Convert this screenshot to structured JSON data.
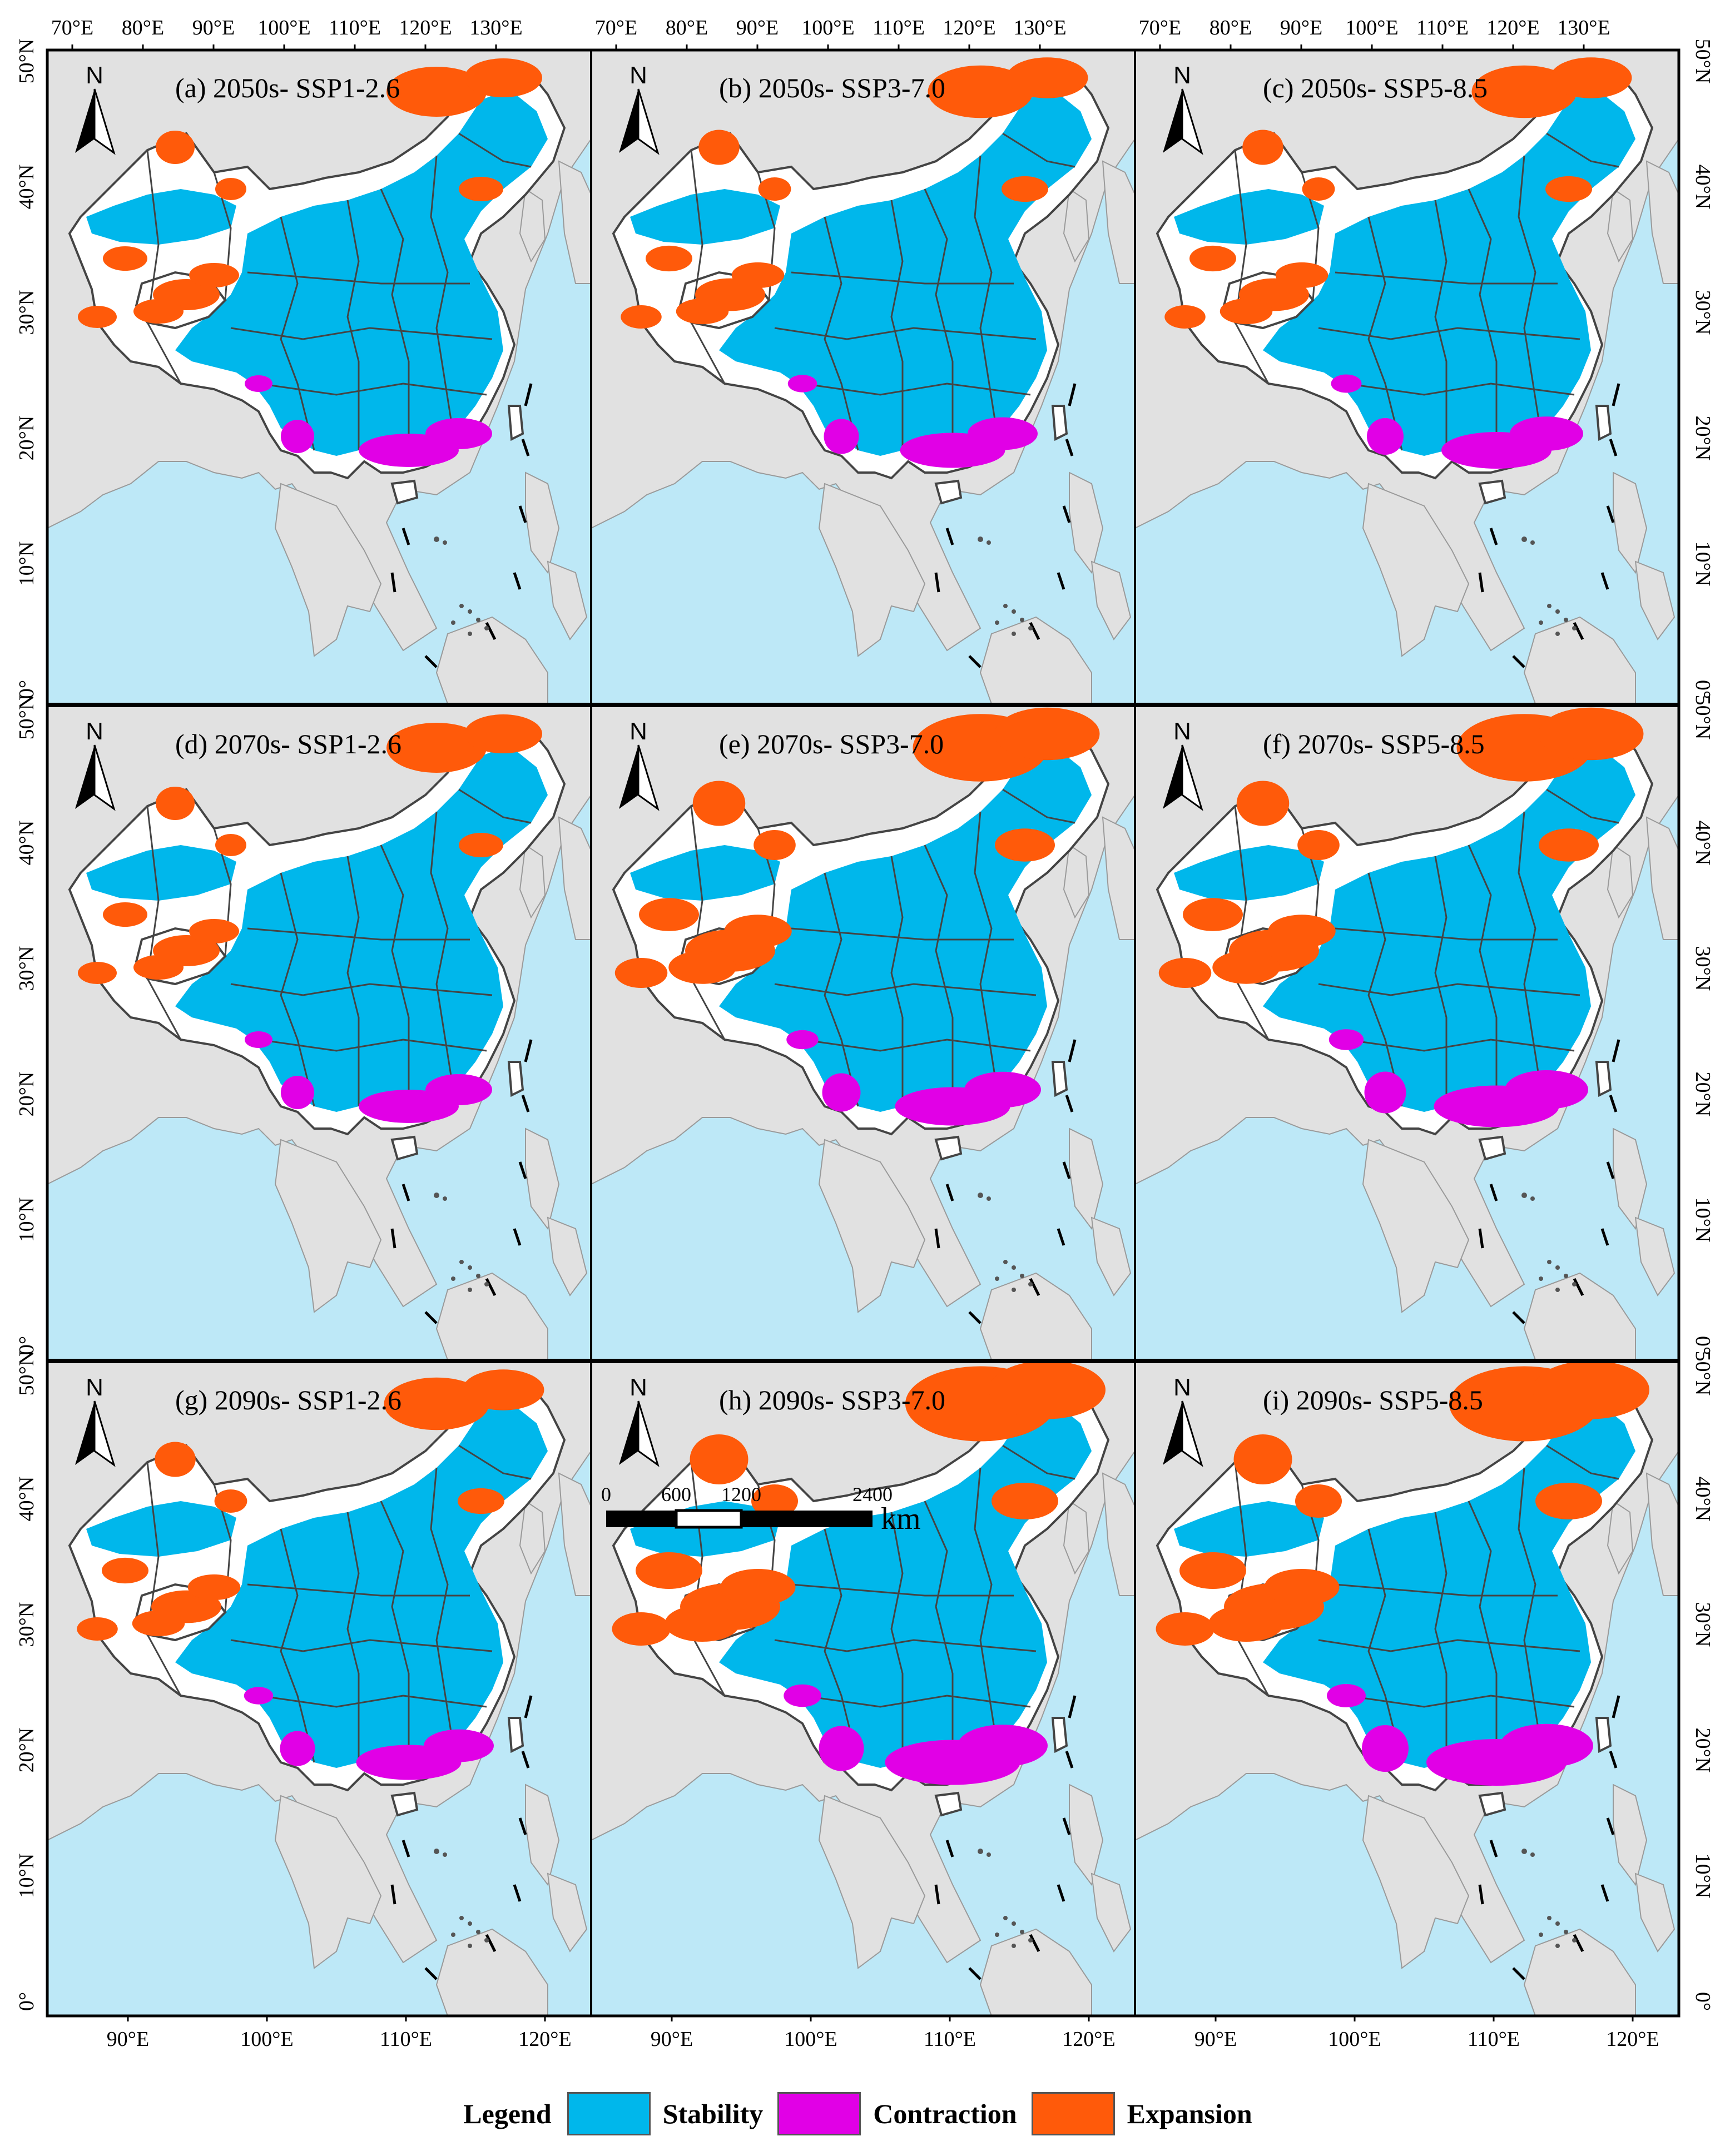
{
  "top_ticks": [
    "70°E",
    "80°E",
    "90°E",
    "100°E",
    "110°E",
    "120°E",
    "130°E"
  ],
  "bottom_ticks": [
    "90°E",
    "100°E",
    "110°E",
    "120°E"
  ],
  "lat_ticks": [
    "50°N",
    "40°N",
    "30°N",
    "20°N",
    "10°N",
    "0°"
  ],
  "north_label": "N",
  "panels": [
    {
      "label": "(a)  2050s- SSP1-2.6",
      "expansion": 1.0,
      "contraction": 1.0
    },
    {
      "label": "(b)  2050s- SSP3-7.0",
      "expansion": 1.05,
      "contraction": 1.05
    },
    {
      "label": "(c)  2050s- SSP5-8.5",
      "expansion": 1.05,
      "contraction": 1.1
    },
    {
      "label": "(d)  2070s- SSP1-2.6",
      "expansion": 1.0,
      "contraction": 1.0
    },
    {
      "label": "(e)  2070s- SSP3-7.0",
      "expansion": 1.35,
      "contraction": 1.15
    },
    {
      "label": "(f)  2070s- SSP5-8.5",
      "expansion": 1.35,
      "contraction": 1.25
    },
    {
      "label": "(g)  2090s- SSP1-2.6",
      "expansion": 1.05,
      "contraction": 1.05
    },
    {
      "label": "(h)  2090s- SSP3-7.0",
      "expansion": 1.5,
      "contraction": 1.35
    },
    {
      "label": "(i)  2090s- SSP5-8.5",
      "expansion": 1.5,
      "contraction": 1.4
    }
  ],
  "scale_bar": {
    "ticks": [
      "0",
      "600",
      "1200",
      "2400"
    ],
    "unit": "km"
  },
  "legend": {
    "title": "Legend",
    "items": [
      {
        "label": "Stability",
        "color": "#00B7EB"
      },
      {
        "label": "Contraction",
        "color": "#E100E6"
      },
      {
        "label": "Expansion",
        "color": "#FF5A0A"
      }
    ]
  },
  "colors": {
    "ocean": "#BDE8F7",
    "land_other": "#E1E1E1",
    "unsuitable": "#FFFFFF",
    "border": "#444444"
  }
}
